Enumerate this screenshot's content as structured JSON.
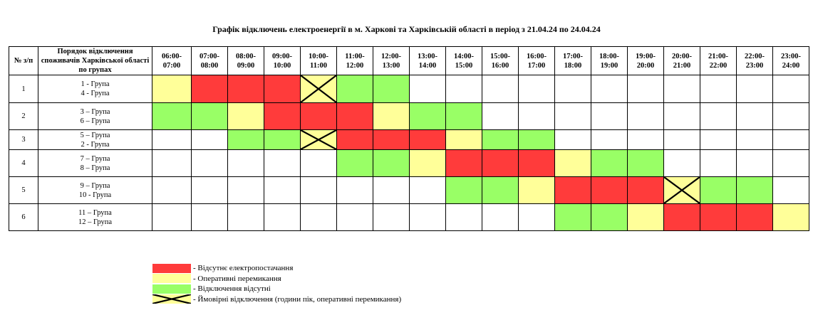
{
  "title": "Графік відключень електроенергії в м. Харкові та Харківській області в період з 21.04.24 по 24.04.24",
  "colors": {
    "R": "#ff3b3b",
    "Y": "#ffff99",
    "G": "#99ff66",
    "W": "#ffffff",
    "X": "#ffff99"
  },
  "header": {
    "num": "№ з/п",
    "groups": "Порядок відключення споживачів Харківської області по групах",
    "hours": [
      [
        "06:00-",
        "07:00"
      ],
      [
        "07:00-",
        "08:00"
      ],
      [
        "08:00-",
        "09:00"
      ],
      [
        "09:00-",
        "10:00"
      ],
      [
        "10:00-",
        "11:00"
      ],
      [
        "11:00-",
        "12:00"
      ],
      [
        "12:00-",
        "13:00"
      ],
      [
        "13:00-",
        "14:00"
      ],
      [
        "14:00-",
        "15:00"
      ],
      [
        "15:00-",
        "16:00"
      ],
      [
        "16:00-",
        "17:00"
      ],
      [
        "17:00-",
        "18:00"
      ],
      [
        "18:00-",
        "19:00"
      ],
      [
        "19:00-",
        "20:00"
      ],
      [
        "20:00-",
        "21:00"
      ],
      [
        "21:00-",
        "22:00"
      ],
      [
        "22:00-",
        "23:00"
      ],
      [
        "23:00-",
        "24:00"
      ]
    ]
  },
  "rows": [
    {
      "num": "1",
      "groups": [
        "1 - Група",
        "4 - Група"
      ],
      "cells": [
        "Y",
        "R",
        "R",
        "R",
        "X",
        "G",
        "G",
        "W",
        "W",
        "W",
        "W",
        "W",
        "W",
        "W",
        "W",
        "W",
        "W",
        "W"
      ]
    },
    {
      "num": "2",
      "groups": [
        "3 – Група",
        "6 – Група"
      ],
      "cells": [
        "G",
        "G",
        "Y",
        "R",
        "R",
        "R",
        "Y",
        "G",
        "G",
        "W",
        "W",
        "W",
        "W",
        "W",
        "W",
        "W",
        "W",
        "W"
      ]
    },
    {
      "num": "3",
      "groups": [
        "5 – Група",
        "2 - Група"
      ],
      "cells": [
        "W",
        "W",
        "G",
        "G",
        "X",
        "R",
        "R",
        "R",
        "Y",
        "G",
        "G",
        "W",
        "W",
        "W",
        "W",
        "W",
        "W",
        "W"
      ]
    },
    {
      "num": "4",
      "groups": [
        "7 – Група",
        "8 – Група"
      ],
      "cells": [
        "W",
        "W",
        "W",
        "W",
        "W",
        "G",
        "G",
        "Y",
        "R",
        "R",
        "R",
        "Y",
        "G",
        "G",
        "W",
        "W",
        "W",
        "W"
      ]
    },
    {
      "num": "5",
      "groups": [
        "9 – Група",
        "10 - Група"
      ],
      "cells": [
        "W",
        "W",
        "W",
        "W",
        "W",
        "W",
        "W",
        "W",
        "G",
        "G",
        "Y",
        "R",
        "R",
        "R",
        "X",
        "G",
        "G",
        "W"
      ]
    },
    {
      "num": "6",
      "groups": [
        "11 – Група",
        "12 – Група"
      ],
      "cells": [
        "W",
        "W",
        "W",
        "W",
        "W",
        "W",
        "W",
        "W",
        "W",
        "W",
        "W",
        "G",
        "G",
        "Y",
        "R",
        "R",
        "R",
        "Y"
      ]
    }
  ],
  "legend": [
    {
      "swatch": "R",
      "label": "- Відсутнє електропостачання"
    },
    {
      "swatch": "Y",
      "label": "- Оперативні перемикання"
    },
    {
      "swatch": "G",
      "label": "- Відключення відсутні"
    },
    {
      "swatch": "X",
      "label": "- Ймовірні відключення (години пік, оперативні перемикання)"
    }
  ]
}
